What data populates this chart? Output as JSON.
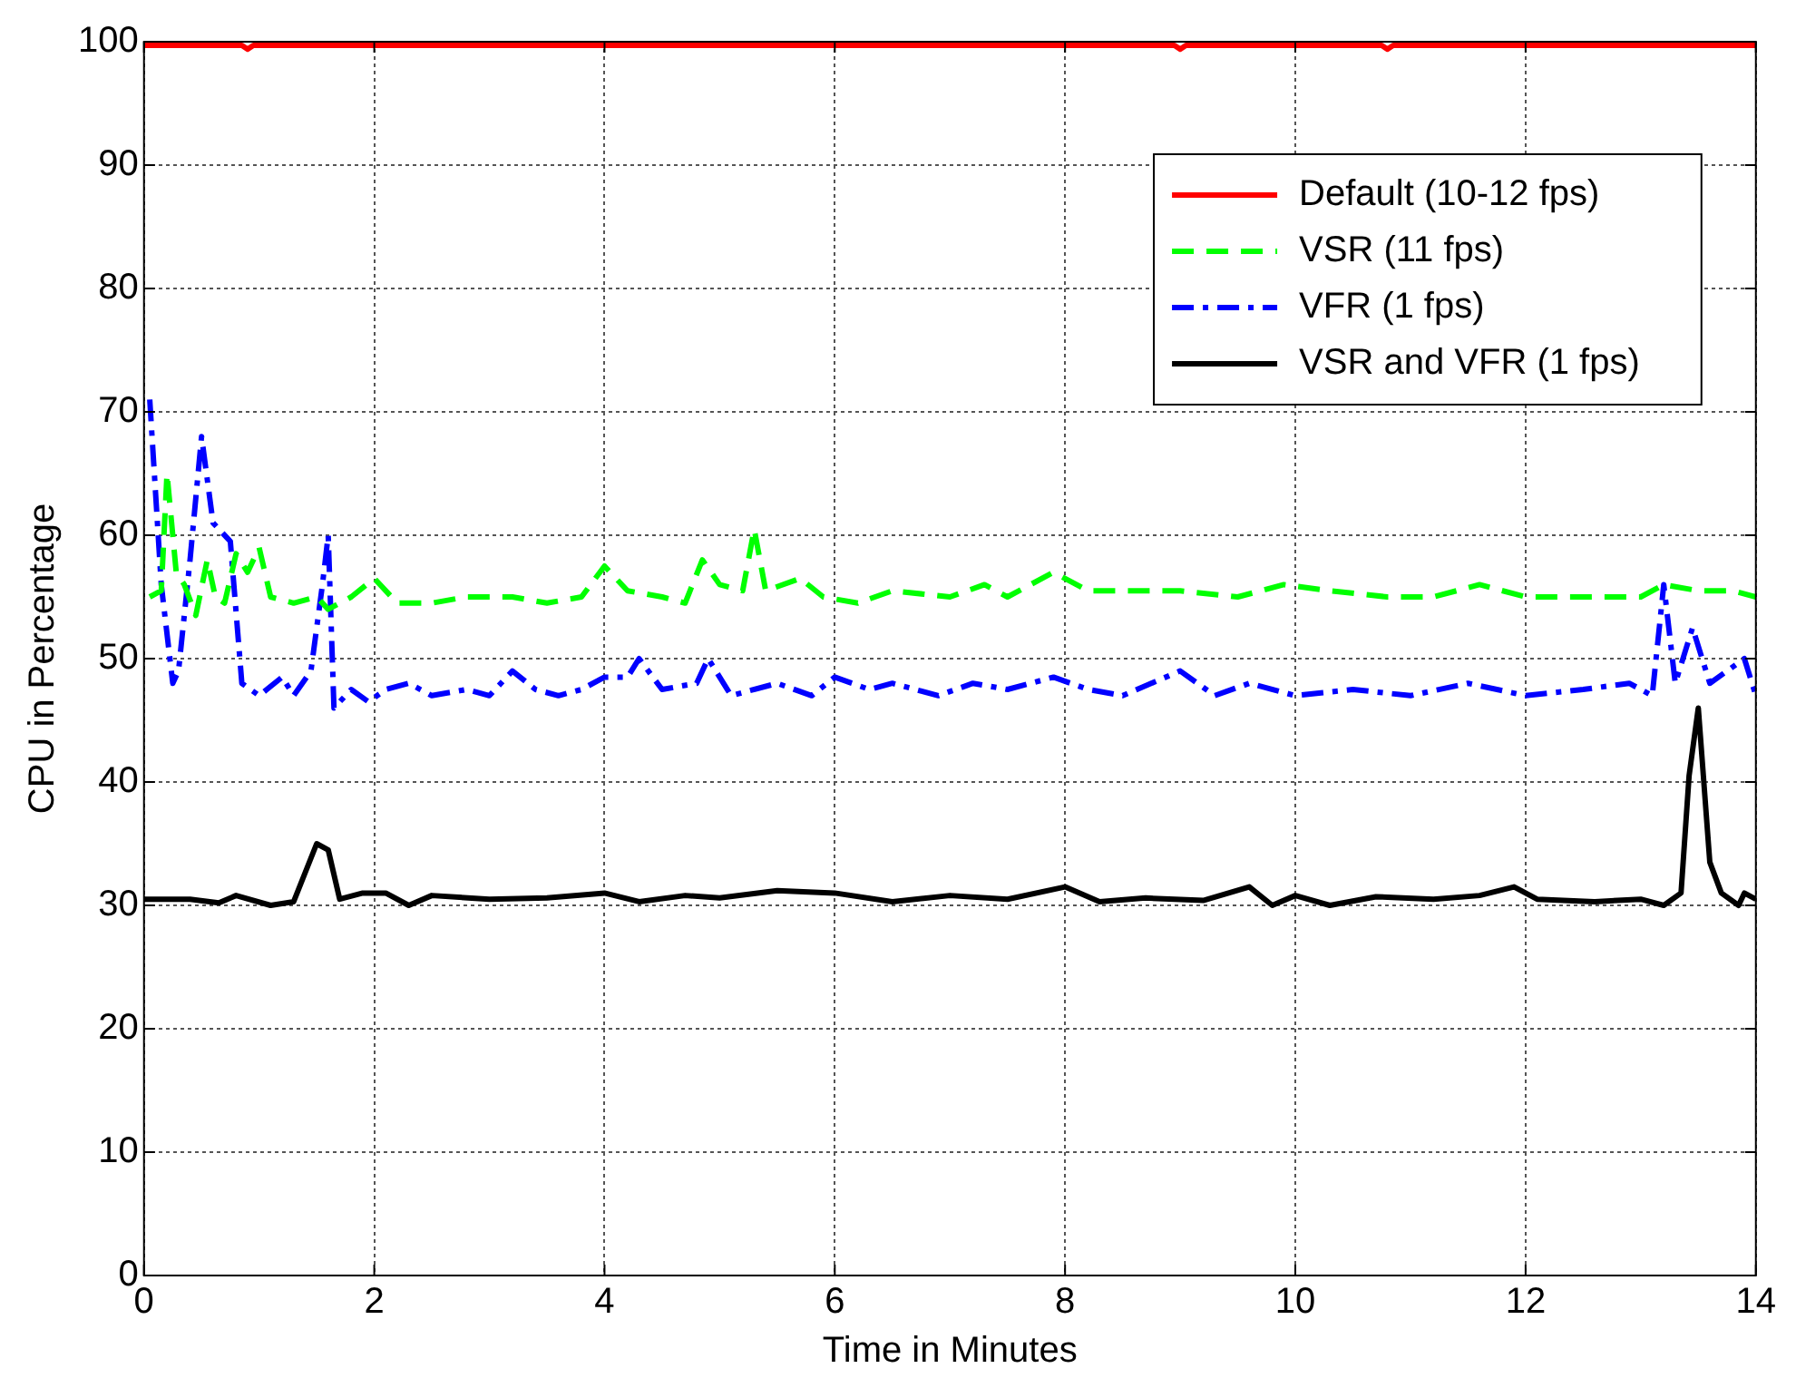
{
  "chart_data": {
    "type": "line",
    "xlabel": "Time in Minutes",
    "ylabel": "CPU in Percentage",
    "xlim": [
      0,
      14
    ],
    "xticks": [
      0,
      2,
      4,
      6,
      8,
      10,
      12,
      14
    ],
    "ylim": [
      0,
      100
    ],
    "yticks": [
      0,
      10,
      20,
      30,
      40,
      50,
      60,
      70,
      80,
      90,
      100
    ],
    "grid": true,
    "legend": "top right",
    "marker": "none",
    "series": [
      {
        "name": "Default (10-12 fps)",
        "color": "#ff0000",
        "line_style": "solid",
        "x": [
          0,
          0.85,
          0.9,
          0.95,
          2,
          4,
          6,
          8,
          8.95,
          9,
          9.05,
          10.75,
          10.8,
          10.85,
          12,
          14
        ],
        "values": [
          99.7,
          99.7,
          99.4,
          99.7,
          99.7,
          99.7,
          99.7,
          99.7,
          99.7,
          99.4,
          99.7,
          99.7,
          99.4,
          99.7,
          99.7,
          99.7
        ]
      },
      {
        "name": "VSR (11 fps)",
        "color": "#00ff00",
        "line_style": "dashed",
        "x": [
          0.05,
          0.15,
          0.2,
          0.28,
          0.35,
          0.45,
          0.55,
          0.62,
          0.7,
          0.8,
          0.9,
          1.0,
          1.1,
          1.3,
          1.5,
          1.6,
          1.8,
          2.0,
          2.2,
          2.5,
          2.8,
          3.2,
          3.5,
          3.8,
          4.0,
          4.2,
          4.5,
          4.7,
          4.85,
          5.0,
          5.2,
          5.3,
          5.4,
          5.7,
          5.9,
          6.2,
          6.5,
          7.0,
          7.3,
          7.5,
          7.9,
          8.2,
          8.5,
          9.0,
          9.5,
          9.9,
          10.3,
          10.8,
          11.2,
          11.6,
          12.0,
          12.5,
          13.0,
          13.2,
          13.5,
          13.8,
          14
        ],
        "values": [
          55,
          55.5,
          65,
          57,
          56,
          53.5,
          58,
          55,
          54.5,
          58.5,
          57,
          59,
          55,
          54.5,
          55,
          54,
          55,
          56.5,
          54.5,
          54.5,
          55,
          55,
          54.5,
          55,
          57.5,
          55.5,
          55,
          54.5,
          58,
          56,
          55.5,
          60.5,
          55.5,
          56.5,
          55,
          54.5,
          55.5,
          55,
          56,
          55,
          57,
          55.5,
          55.5,
          55.5,
          55,
          56,
          55.5,
          55,
          55,
          56,
          55,
          55,
          55,
          56,
          55.5,
          55.5,
          55
        ]
      },
      {
        "name": "VFR (1 fps)",
        "color": "#0000ff",
        "line_style": "dashdot",
        "x": [
          0.05,
          0.15,
          0.25,
          0.3,
          0.4,
          0.5,
          0.6,
          0.75,
          0.85,
          1.0,
          1.2,
          1.3,
          1.45,
          1.55,
          1.6,
          1.65,
          1.8,
          1.95,
          2.1,
          2.3,
          2.5,
          2.8,
          3.0,
          3.2,
          3.4,
          3.6,
          3.8,
          4.0,
          4.2,
          4.3,
          4.5,
          4.8,
          4.9,
          5.1,
          5.5,
          5.8,
          6.0,
          6.3,
          6.5,
          6.9,
          7.2,
          7.5,
          7.9,
          8.2,
          8.5,
          9.0,
          9.3,
          9.6,
          10.0,
          10.5,
          11.0,
          11.5,
          12.0,
          12.5,
          12.9,
          13.1,
          13.2,
          13.3,
          13.45,
          13.6,
          13.9,
          14
        ],
        "values": [
          71,
          56,
          48,
          49,
          58,
          68,
          61,
          59.5,
          48,
          47,
          48.5,
          47,
          49,
          56,
          60,
          46,
          47.5,
          46.5,
          47.5,
          48,
          47,
          47.5,
          47,
          49,
          47.5,
          47,
          47.5,
          48.5,
          48.5,
          50,
          47.5,
          48,
          50,
          47,
          48,
          47,
          48.5,
          47.5,
          48,
          47,
          48,
          47.5,
          48.5,
          47.5,
          47,
          49,
          47,
          48,
          47,
          47.5,
          47,
          48,
          47,
          47.5,
          48,
          47,
          56,
          48,
          52.5,
          48,
          50,
          47
        ]
      },
      {
        "name": "VSR and VFR (1 fps)",
        "color": "#000000",
        "line_style": "solid",
        "x": [
          0,
          0.4,
          0.65,
          0.8,
          1.1,
          1.3,
          1.5,
          1.6,
          1.7,
          1.9,
          2.1,
          2.3,
          2.5,
          3.0,
          3.5,
          4.0,
          4.3,
          4.7,
          5.0,
          5.5,
          6.0,
          6.5,
          7.0,
          7.5,
          8.0,
          8.3,
          8.7,
          9.2,
          9.6,
          9.8,
          10.0,
          10.3,
          10.7,
          11.2,
          11.6,
          11.9,
          12.1,
          12.6,
          13.0,
          13.2,
          13.35,
          13.42,
          13.5,
          13.6,
          13.7,
          13.85,
          13.9,
          14
        ],
        "values": [
          30.5,
          30.5,
          30.2,
          30.8,
          30,
          30.3,
          35,
          34.5,
          30.5,
          31,
          31,
          30,
          30.8,
          30.5,
          30.6,
          31,
          30.3,
          30.8,
          30.6,
          31.2,
          31,
          30.3,
          30.8,
          30.5,
          31.5,
          30.3,
          30.6,
          30.4,
          31.5,
          30,
          30.8,
          30,
          30.7,
          30.5,
          30.8,
          31.5,
          30.5,
          30.3,
          30.5,
          30,
          31,
          40.5,
          46,
          33.5,
          31,
          30,
          31,
          30.5
        ]
      }
    ]
  }
}
